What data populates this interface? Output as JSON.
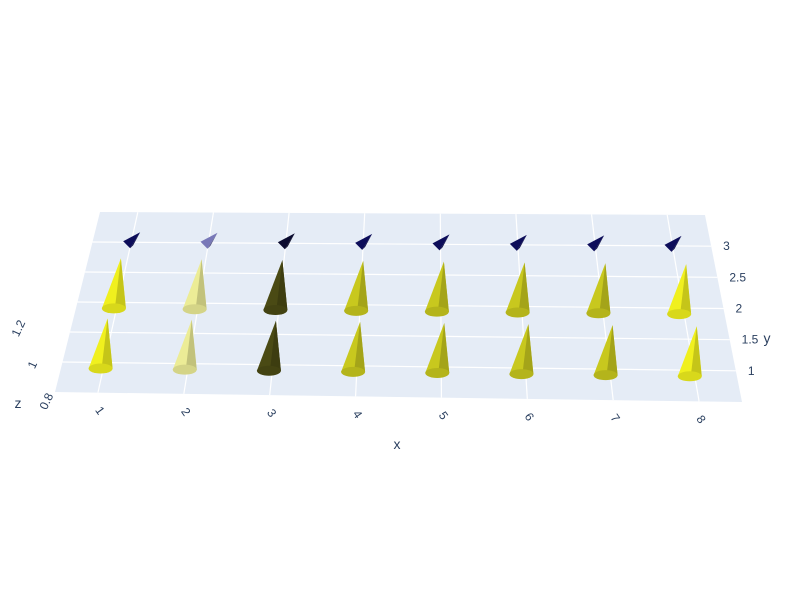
{
  "chart_data": {
    "type": "3d-cone",
    "title": "",
    "xlabel": "x",
    "ylabel": "y",
    "zlabel": "z",
    "x_ticks": [
      "1",
      "2",
      "3",
      "4",
      "5",
      "6",
      "7",
      "8"
    ],
    "y_ticks": [
      "1",
      "1.5",
      "2",
      "2.5",
      "3"
    ],
    "z_ticks": [
      "0.8",
      "1",
      "1.2"
    ],
    "xlim": [
      1,
      8
    ],
    "ylim": [
      1,
      3
    ],
    "zlim": [
      0.8,
      1.2
    ],
    "grid": true,
    "background_color": "#e5ecf6",
    "colors": {
      "yellow_bright": "#f0f01e",
      "yellow": "#c8c81e",
      "yellow_faded": "#ecec96",
      "olive_dark": "#4a4a14",
      "navy": "#0d0d5a",
      "navy_faded": "#7878b8",
      "navy_dark": "#0a0a2e"
    },
    "cones": [
      {
        "x": 1,
        "y": 1,
        "z": 1,
        "color": "yellow_bright"
      },
      {
        "x": 2,
        "y": 1,
        "z": 1,
        "color": "yellow_faded"
      },
      {
        "x": 3,
        "y": 1,
        "z": 1,
        "color": "olive_dark"
      },
      {
        "x": 4,
        "y": 1,
        "z": 1,
        "color": "yellow"
      },
      {
        "x": 5,
        "y": 1,
        "z": 1,
        "color": "yellow"
      },
      {
        "x": 6,
        "y": 1,
        "z": 1,
        "color": "yellow"
      },
      {
        "x": 7,
        "y": 1,
        "z": 1,
        "color": "yellow"
      },
      {
        "x": 8,
        "y": 1,
        "z": 1,
        "color": "yellow_bright"
      },
      {
        "x": 1,
        "y": 2,
        "z": 1,
        "color": "yellow_bright"
      },
      {
        "x": 2,
        "y": 2,
        "z": 1,
        "color": "yellow_faded"
      },
      {
        "x": 3,
        "y": 2,
        "z": 1,
        "color": "olive_dark"
      },
      {
        "x": 4,
        "y": 2,
        "z": 1,
        "color": "yellow"
      },
      {
        "x": 5,
        "y": 2,
        "z": 1,
        "color": "yellow"
      },
      {
        "x": 6,
        "y": 2,
        "z": 1,
        "color": "yellow"
      },
      {
        "x": 7,
        "y": 2,
        "z": 1,
        "color": "yellow"
      },
      {
        "x": 8,
        "y": 2,
        "z": 1,
        "color": "yellow_bright"
      },
      {
        "x": 1,
        "y": 3,
        "z": 1,
        "color": "navy",
        "small": true
      },
      {
        "x": 2,
        "y": 3,
        "z": 1,
        "color": "navy_faded",
        "small": true
      },
      {
        "x": 3,
        "y": 3,
        "z": 1,
        "color": "navy_dark",
        "small": true
      },
      {
        "x": 4,
        "y": 3,
        "z": 1,
        "color": "navy",
        "small": true
      },
      {
        "x": 5,
        "y": 3,
        "z": 1,
        "color": "navy",
        "small": true
      },
      {
        "x": 6,
        "y": 3,
        "z": 1,
        "color": "navy",
        "small": true
      },
      {
        "x": 7,
        "y": 3,
        "z": 1,
        "color": "navy",
        "small": true
      },
      {
        "x": 8,
        "y": 3,
        "z": 1,
        "color": "navy",
        "small": true
      }
    ]
  }
}
